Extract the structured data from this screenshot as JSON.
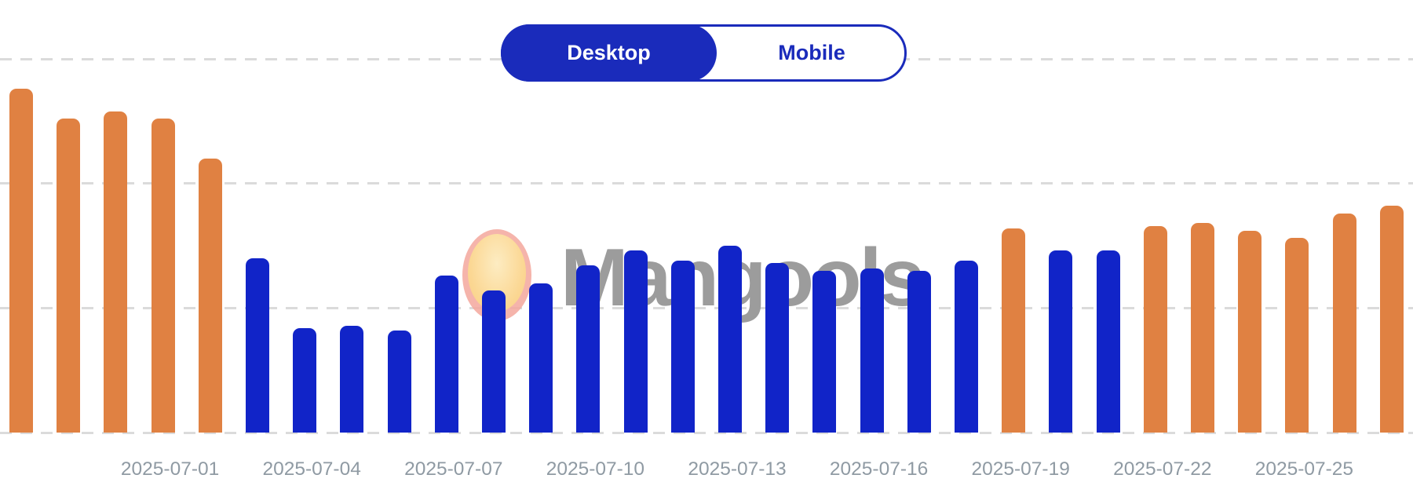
{
  "page": {
    "background": "#FFFFFF"
  },
  "toggle": {
    "desktop_label": "Desktop",
    "mobile_label": "Mobile",
    "active": "desktop",
    "accent": "#1A2BBB",
    "active_text": "#FFFFFF"
  },
  "watermark": {
    "text": "Mangools"
  },
  "chart_data": {
    "type": "bar",
    "title": "",
    "xlabel": "",
    "ylabel": "",
    "x": [
      "2025-06-28",
      "2025-06-29",
      "2025-06-30",
      "2025-07-01",
      "2025-07-02",
      "2025-07-03",
      "2025-07-04",
      "2025-07-05",
      "2025-07-06",
      "2025-07-07",
      "2025-07-08",
      "2025-07-09",
      "2025-07-10",
      "2025-07-11",
      "2025-07-12",
      "2025-07-13",
      "2025-07-14",
      "2025-07-15",
      "2025-07-16",
      "2025-07-17",
      "2025-07-18",
      "2025-07-19",
      "2025-07-20",
      "2025-07-21",
      "2025-07-22",
      "2025-07-23",
      "2025-07-24",
      "2025-07-25",
      "2025-07-26",
      "2025-07-27"
    ],
    "values": [
      138,
      126,
      129,
      126,
      110,
      70,
      42,
      43,
      41,
      63,
      57,
      60,
      67,
      73,
      69,
      75,
      68,
      65,
      66,
      65,
      69,
      82,
      73,
      73,
      83,
      84,
      81,
      78,
      88,
      91
    ],
    "high_volatility": [
      true,
      true,
      true,
      true,
      true,
      false,
      false,
      false,
      false,
      false,
      false,
      false,
      false,
      false,
      false,
      false,
      false,
      false,
      false,
      false,
      false,
      true,
      false,
      false,
      true,
      true,
      true,
      true,
      true,
      true
    ],
    "tick_labels": [
      "2025-07-01",
      "2025-07-04",
      "2025-07-07",
      "2025-07-10",
      "2025-07-13",
      "2025-07-16",
      "2025-07-19",
      "2025-07-22",
      "2025-07-25"
    ],
    "ylim": [
      0,
      150
    ],
    "grid": true,
    "gridline_values": [
      0,
      50,
      100,
      150
    ],
    "legend": "none",
    "colors": {
      "normal": "#1124C8",
      "high": "#E08142",
      "gridline": "#DBDBDB",
      "tick_text": "#8F9AA3"
    }
  }
}
